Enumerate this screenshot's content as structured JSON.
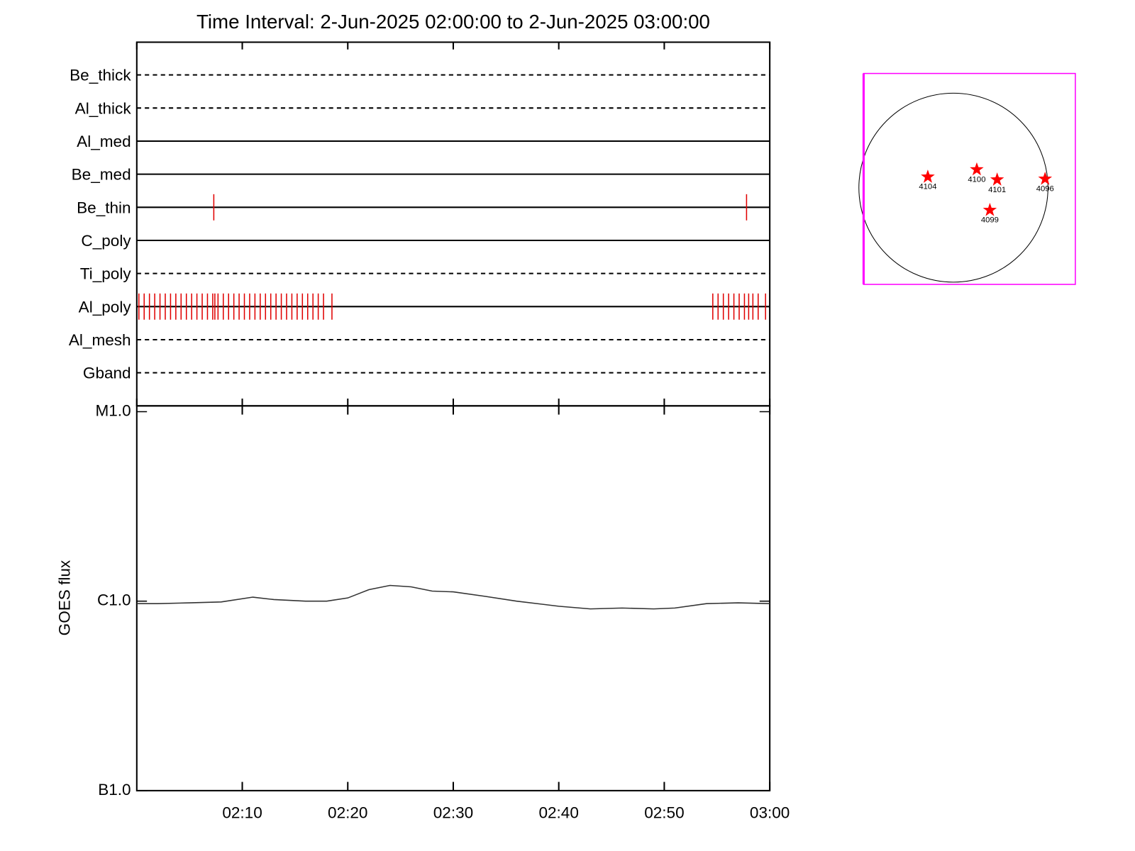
{
  "chart_data": [
    {
      "type": "timeline",
      "title": "Time Interval:  2-Jun-2025 02:00:00 to  2-Jun-2025 03:00:00",
      "xlim": [
        0,
        60
      ],
      "xticks": [
        0,
        10,
        20,
        30,
        40,
        50,
        60
      ],
      "event_color": "#e00000",
      "series": [
        {
          "name": "Be_thick",
          "style": "dashed",
          "x": []
        },
        {
          "name": "Al_thick",
          "style": "dashed",
          "x": []
        },
        {
          "name": "Al_med",
          "style": "solid",
          "x": []
        },
        {
          "name": "Be_med",
          "style": "solid",
          "x": []
        },
        {
          "name": "Be_thin",
          "style": "solid",
          "x": [
            7.3,
            57.8
          ]
        },
        {
          "name": "C_poly",
          "style": "solid",
          "x": []
        },
        {
          "name": "Ti_poly",
          "style": "dashed",
          "x": []
        },
        {
          "name": "Al_poly",
          "style": "solid",
          "x": [
            0.2,
            0.7,
            1.2,
            1.7,
            2.2,
            2.7,
            3.2,
            3.7,
            4.2,
            4.7,
            5.2,
            5.7,
            6.2,
            6.7,
            7.2,
            7.4,
            7.7,
            8.2,
            8.7,
            9.2,
            9.7,
            10.2,
            10.7,
            11.2,
            11.7,
            12.2,
            12.7,
            13.2,
            13.7,
            14.2,
            14.7,
            15.2,
            15.7,
            16.2,
            16.7,
            17.2,
            17.7,
            18.5,
            54.6,
            55.1,
            55.6,
            56.1,
            56.6,
            57.1,
            57.6,
            58.0,
            58.4,
            58.9,
            59.6
          ]
        },
        {
          "name": "Al_mesh",
          "style": "dashed",
          "x": []
        },
        {
          "name": "Gband",
          "style": "dashed",
          "x": []
        }
      ]
    },
    {
      "type": "line",
      "y_label": "GOES flux",
      "log_y": true,
      "color": "#333333",
      "xlim": [
        0,
        60
      ],
      "xticks": [
        {
          "value": 10,
          "label": "02:10"
        },
        {
          "value": 20,
          "label": "02:20"
        },
        {
          "value": 30,
          "label": "02:30"
        },
        {
          "value": 40,
          "label": "02:40"
        },
        {
          "value": 50,
          "label": "02:50"
        },
        {
          "value": 60,
          "label": "03:00"
        }
      ],
      "ylim": [
        1e-07,
        1e-05
      ],
      "yticks": [
        {
          "value": 1e-07,
          "label": "B1.0"
        },
        {
          "value": 1e-06,
          "label": "C1.0"
        },
        {
          "value": 1e-05,
          "label": "M1.0"
        }
      ],
      "x": [
        0,
        2,
        5,
        8,
        11,
        13,
        16,
        18,
        20,
        22,
        24,
        26,
        28,
        30,
        33,
        36,
        40,
        43,
        46,
        49,
        51,
        54,
        57,
        60
      ],
      "values": [
        9.7e-07,
        9.7e-07,
        9.8e-07,
        9.9e-07,
        1.05e-06,
        1.02e-06,
        1e-06,
        1e-06,
        1.04e-06,
        1.15e-06,
        1.21e-06,
        1.19e-06,
        1.13e-06,
        1.12e-06,
        1.06e-06,
        1e-06,
        9.4e-07,
        9.1e-07,
        9.2e-07,
        9.1e-07,
        9.2e-07,
        9.7e-07,
        9.8e-07,
        9.7e-07
      ]
    },
    {
      "type": "map",
      "frame_color": "#ff00ff",
      "marker_color": "#ff0000",
      "xlim": [
        -912,
        1238
      ],
      "ylim": [
        -986,
        1164
      ],
      "disk_radius": 960,
      "labels": [
        "4104",
        "4100",
        "4101",
        "4096",
        "4099"
      ],
      "x": [
        -260,
        237,
        444,
        931,
        370
      ],
      "values": [
        110,
        185,
        81,
        89,
        -229
      ]
    }
  ]
}
